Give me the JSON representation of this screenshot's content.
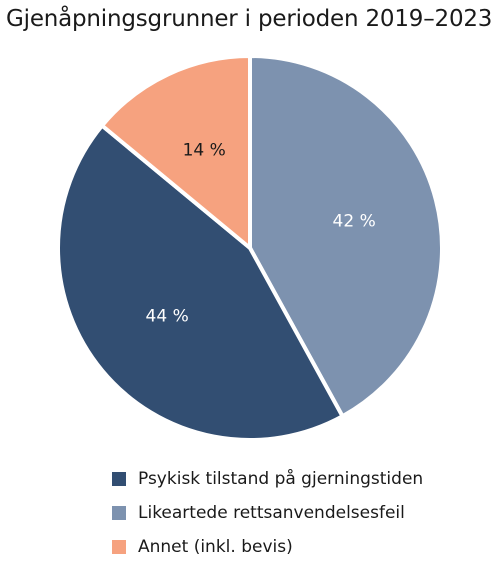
{
  "chart_data": {
    "type": "pie",
    "title": "Gjenåpningsgrunner i perioden 2019–2023",
    "slices": [
      {
        "name": "Likeartede rettsanvendelsesfeil",
        "value": 42,
        "label": "42 %",
        "color": "#7d92af"
      },
      {
        "name": "Psykisk tilstand på gjerningstiden",
        "value": 44,
        "label": "44 %",
        "color": "#324e72"
      },
      {
        "name": "Annet (inkl. bevis)",
        "value": 14,
        "label": "14 %",
        "color": "#f6a27f"
      }
    ],
    "legend": [
      {
        "name": "Psykisk tilstand på gjerningstiden",
        "color": "#324e72"
      },
      {
        "name": "Likeartede rettsanvendelsesfeil",
        "color": "#7d92af"
      },
      {
        "name": "Annet (inkl. bevis)",
        "color": "#f6a27f"
      }
    ],
    "legend_position": "bottom",
    "start_angle": "12 o'clock",
    "direction": "clockwise"
  }
}
